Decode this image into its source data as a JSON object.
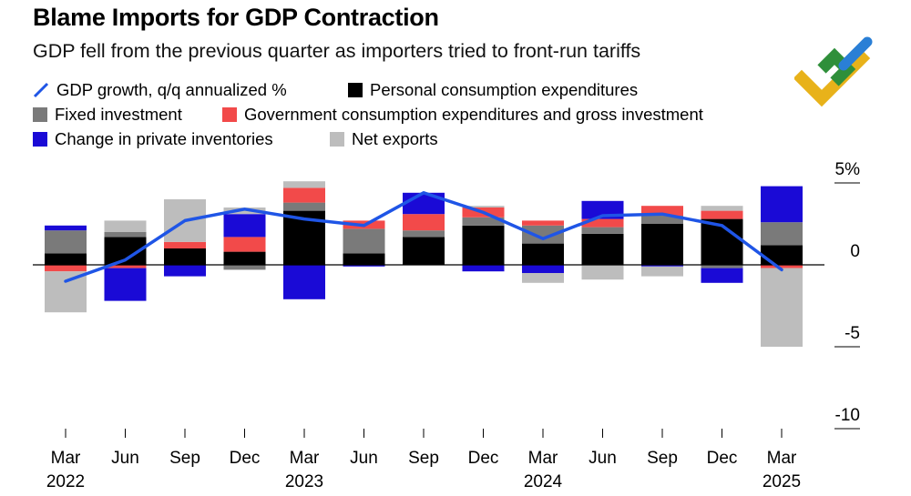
{
  "header": {
    "title": "Blame Imports for GDP Contraction",
    "subtitle": "GDP fell from the previous quarter as importers tried to front-run tariffs"
  },
  "legend": {
    "gdp": "GDP growth, q/q annualized %",
    "pce": "Personal consumption expenditures",
    "fixed": "Fixed investment",
    "gov": "Government consumption expenditures and gross investment",
    "inv": "Change in private inventories",
    "net": "Net exports"
  },
  "colors": {
    "gdp": "#1f55e6",
    "pce": "#000000",
    "fixed": "#7a7a7a",
    "gov": "#f24a4a",
    "inv": "#1a0ad6",
    "net": "#bdbdbd"
  },
  "chart_data": {
    "type": "bar",
    "stacked": true,
    "title": "Blame Imports for GDP Contraction",
    "subtitle": "GDP fell from the previous quarter as importers tried to front-run tariffs",
    "x_tick_labels": [
      {
        "month": "Mar",
        "year": "2022"
      },
      {
        "month": "Jun",
        "year": ""
      },
      {
        "month": "Sep",
        "year": ""
      },
      {
        "month": "Dec",
        "year": ""
      },
      {
        "month": "Mar",
        "year": "2023"
      },
      {
        "month": "Jun",
        "year": ""
      },
      {
        "month": "Sep",
        "year": ""
      },
      {
        "month": "Dec",
        "year": ""
      },
      {
        "month": "Mar",
        "year": "2024"
      },
      {
        "month": "Jun",
        "year": ""
      },
      {
        "month": "Sep",
        "year": ""
      },
      {
        "month": "Dec",
        "year": ""
      },
      {
        "month": "Mar",
        "year": "2025"
      }
    ],
    "categories": [
      "Mar 2022",
      "Jun 2022",
      "Sep 2022",
      "Dec 2022",
      "Mar 2023",
      "Jun 2023",
      "Sep 2023",
      "Dec 2023",
      "Mar 2024",
      "Jun 2024",
      "Sep 2024",
      "Dec 2024",
      "Mar 2025"
    ],
    "series": [
      {
        "key": "pce",
        "name": "Personal consumption expenditures",
        "values": [
          0.7,
          1.7,
          1.0,
          0.8,
          3.3,
          0.7,
          1.7,
          2.4,
          1.3,
          1.9,
          2.5,
          2.8,
          1.2
        ]
      },
      {
        "key": "fixed",
        "name": "Fixed investment",
        "values": [
          1.4,
          0.3,
          0.0,
          -0.3,
          0.5,
          1.5,
          0.4,
          0.5,
          1.1,
          0.4,
          0.5,
          -0.2,
          1.4
        ]
      },
      {
        "key": "gov",
        "name": "Government consumption expenditures and gross investment",
        "values": [
          -0.4,
          -0.2,
          0.4,
          0.9,
          0.9,
          0.5,
          1.0,
          0.6,
          0.3,
          0.5,
          0.6,
          0.5,
          -0.2
        ]
      },
      {
        "key": "inv",
        "name": "Change in private inventories",
        "values": [
          0.3,
          -2.0,
          -0.7,
          1.4,
          -2.1,
          -0.1,
          1.3,
          -0.4,
          -0.5,
          1.1,
          -0.1,
          -0.9,
          2.2
        ]
      },
      {
        "key": "net",
        "name": "Net exports",
        "values": [
          -2.5,
          0.7,
          2.6,
          0.4,
          0.4,
          0.0,
          0.0,
          0.1,
          -0.6,
          -0.9,
          -0.6,
          0.3,
          -4.8
        ]
      }
    ],
    "line": {
      "key": "gdp",
      "name": "GDP growth, q/q annualized %",
      "values": [
        -1.0,
        0.3,
        2.7,
        3.4,
        2.8,
        2.4,
        4.4,
        3.2,
        1.6,
        3.0,
        3.1,
        2.4,
        -0.3
      ]
    },
    "y_ticks": [
      {
        "value": 5,
        "label": "5%"
      },
      {
        "value": 0,
        "label": "0"
      },
      {
        "value": -5,
        "label": "-5"
      },
      {
        "value": -10,
        "label": "-10"
      }
    ],
    "ylim": [
      -10,
      5
    ],
    "legend_position": "top-left"
  }
}
